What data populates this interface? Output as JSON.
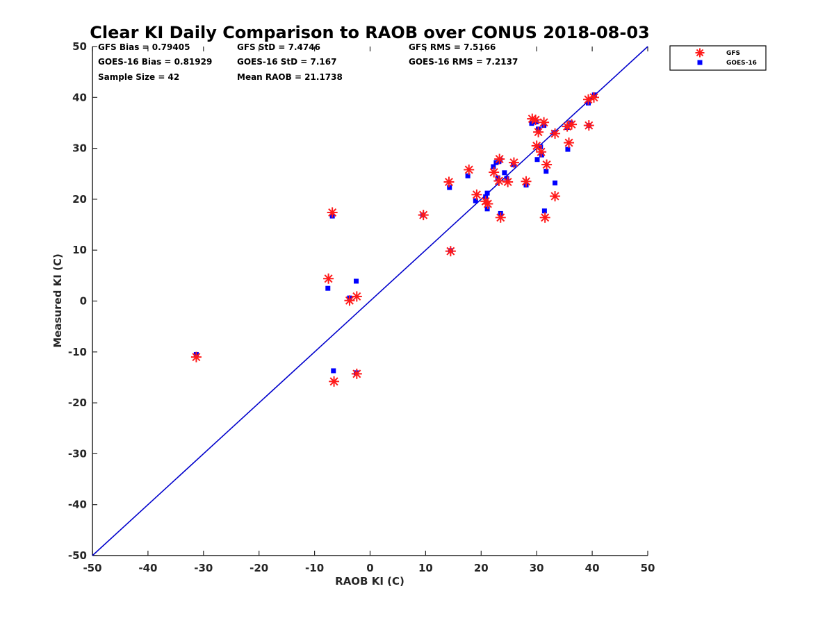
{
  "chart_data": {
    "type": "scatter",
    "title": "Clear KI Daily Comparison to RAOB over CONUS 2018-08-03",
    "xlabel": "RAOB KI (C)",
    "ylabel": "Measured KI (C)",
    "xlim": [
      -50,
      50
    ],
    "ylim": [
      -50,
      50
    ],
    "xticks": [
      "-50",
      "-40",
      "-30",
      "-20",
      "-10",
      "0",
      "10",
      "20",
      "30",
      "40",
      "50"
    ],
    "yticks": [
      "-50",
      "-40",
      "-30",
      "-20",
      "-10",
      "0",
      "10",
      "20",
      "30",
      "40",
      "50"
    ],
    "grid": false,
    "legend_position": "outside-top-right",
    "stats": {
      "gfs_bias": "GFS Bias = 0.79405",
      "gfs_std": "GFS StD = 7.4746",
      "gfs_rms": "GFS RMS = 7.5166",
      "goes_bias": "GOES-16 Bias = 0.81929",
      "goes_std": "GOES-16 StD = 7.167",
      "goes_rms": "GOES-16 RMS = 7.2137",
      "sample_size": "Sample Size = 42",
      "mean_raob": "Mean RAOB = 21.1738"
    },
    "reference_line": {
      "type": "one-to-one",
      "color": "#0000cc"
    },
    "series": [
      {
        "name": "GFS",
        "marker": "asterisk",
        "color": "#ff1a1a",
        "points": [
          [
            -31.3,
            -11
          ],
          [
            -7.5,
            4.4
          ],
          [
            -6.8,
            17.4
          ],
          [
            -6.5,
            -15.8
          ],
          [
            -3.7,
            0.1
          ],
          [
            -2.4,
            0.9
          ],
          [
            -2.4,
            -14.3
          ],
          [
            9.6,
            16.9
          ],
          [
            14.5,
            9.8
          ],
          [
            14.2,
            23.4
          ],
          [
            17.8,
            25.8
          ],
          [
            19.2,
            20.9
          ],
          [
            20.8,
            19.6
          ],
          [
            21.2,
            19.1
          ],
          [
            22.3,
            25.3
          ],
          [
            23.2,
            23.6
          ],
          [
            23.3,
            27.9
          ],
          [
            23.5,
            16.4
          ],
          [
            24.8,
            23.4
          ],
          [
            25.9,
            27.2
          ],
          [
            28.1,
            23.5
          ],
          [
            29.2,
            35.8
          ],
          [
            29.8,
            35.6
          ],
          [
            30,
            30.5
          ],
          [
            30.3,
            33.2
          ],
          [
            30.8,
            29.3
          ],
          [
            31.3,
            35.1
          ],
          [
            31.5,
            16.4
          ],
          [
            31.8,
            26.8
          ],
          [
            33.3,
            32.9
          ],
          [
            33.3,
            20.6
          ],
          [
            35.5,
            34.3
          ],
          [
            35.8,
            31.1
          ],
          [
            36.3,
            34.7
          ],
          [
            39.3,
            39.6
          ],
          [
            39.4,
            34.5
          ],
          [
            40.3,
            40.0
          ]
        ]
      },
      {
        "name": "GOES-16",
        "marker": "square",
        "color": "#0000ff",
        "points": [
          [
            -31.3,
            -10.5
          ],
          [
            -7.6,
            2.5
          ],
          [
            -6.8,
            16.7
          ],
          [
            -6.6,
            -13.7
          ],
          [
            -3.7,
            0.6
          ],
          [
            -2.5,
            3.9
          ],
          [
            -2.5,
            -14.1
          ],
          [
            9.5,
            16.9
          ],
          [
            14.5,
            9.9
          ],
          [
            14.3,
            22.3
          ],
          [
            17.6,
            24.6
          ],
          [
            19.0,
            19.7
          ],
          [
            20.8,
            20.5
          ],
          [
            21.1,
            21.2
          ],
          [
            21.1,
            18.1
          ],
          [
            22.2,
            26.4
          ],
          [
            22.7,
            27.2
          ],
          [
            23.0,
            24.2
          ],
          [
            23.2,
            27.4
          ],
          [
            23.4,
            27.7
          ],
          [
            23.5,
            17.2
          ],
          [
            24.2,
            25.2
          ],
          [
            24.6,
            24.1
          ],
          [
            25.8,
            26.8
          ],
          [
            28.1,
            22.8
          ],
          [
            29.1,
            34.9
          ],
          [
            29.9,
            35.2
          ],
          [
            30.1,
            27.8
          ],
          [
            30.3,
            33.8
          ],
          [
            30.7,
            30.3
          ],
          [
            30.9,
            28.7
          ],
          [
            31.3,
            34.5
          ],
          [
            31.4,
            17.7
          ],
          [
            31.7,
            25.5
          ],
          [
            33.1,
            33.1
          ],
          [
            33.3,
            23.2
          ],
          [
            35.5,
            34.1
          ],
          [
            35.6,
            29.8
          ],
          [
            36.1,
            35.0
          ],
          [
            39.3,
            38.9
          ],
          [
            39.4,
            34.5
          ],
          [
            40.4,
            40.5
          ]
        ]
      }
    ]
  }
}
